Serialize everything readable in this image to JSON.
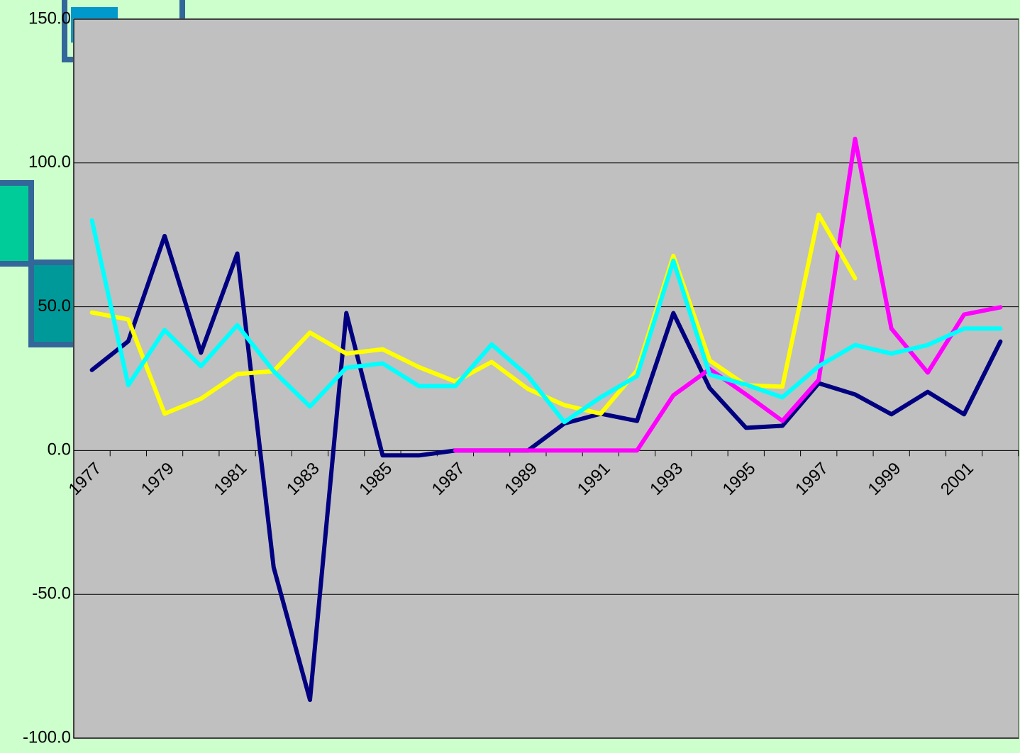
{
  "chart_data": {
    "type": "line",
    "categories": [
      "1977",
      null,
      "1979",
      null,
      "1981",
      null,
      "1983",
      null,
      "1985",
      null,
      "1987",
      null,
      "1989",
      null,
      "1991",
      null,
      "1993",
      null,
      "1995",
      null,
      "1997",
      null,
      "1999",
      null,
      "2001",
      null
    ],
    "series": [
      {
        "color": "#000080",
        "values": [
          28,
          38,
          74.6,
          34,
          68.5,
          -40.6,
          -86.7,
          47.8,
          -1.7,
          -1.7,
          0,
          0,
          0,
          9.4,
          12.8,
          10.3,
          47.8,
          21.7,
          7.9,
          8.6,
          23.4,
          19.5,
          12.6,
          20.4,
          12.6,
          37.9
        ]
      },
      {
        "color": "#ff00ff",
        "values": [
          null,
          null,
          null,
          null,
          null,
          null,
          null,
          null,
          null,
          null,
          0,
          0,
          0,
          0,
          0,
          0,
          19.2,
          28.3,
          19.5,
          10.3,
          24.6,
          108.4,
          42.4,
          27.1,
          47.3,
          49.8
        ]
      },
      {
        "color": "#ffff00",
        "values": [
          48,
          45.6,
          12.8,
          18,
          26.6,
          27.6,
          41,
          33.7,
          35.2,
          29,
          24,
          30.8,
          21.4,
          15.8,
          12.8,
          27.8,
          67.7,
          31.3,
          22.7,
          22.2,
          82,
          59.9,
          null,
          null,
          null,
          null
        ]
      },
      {
        "color": "#00ffff",
        "values": [
          80,
          22.7,
          41.9,
          29.3,
          43.6,
          27.6,
          15.3,
          28.8,
          30.3,
          22.4,
          22.4,
          36.9,
          25.9,
          9.9,
          18.5,
          25.9,
          66,
          26.4,
          22.9,
          18.5,
          29.3,
          36.7,
          33.7,
          36.7,
          42.4,
          42.4
        ]
      }
    ],
    "ylim": [
      -100,
      150
    ],
    "yticks": [
      {
        "value": -100,
        "label": "-100.0"
      },
      {
        "value": -50,
        "label": "-50.0"
      },
      {
        "value": 0,
        "label": "0.0"
      },
      {
        "value": 50,
        "label": "50.0"
      },
      {
        "value": 100,
        "label": "100.0"
      },
      {
        "value": 150,
        "label": "150.0"
      }
    ],
    "grid": true
  }
}
